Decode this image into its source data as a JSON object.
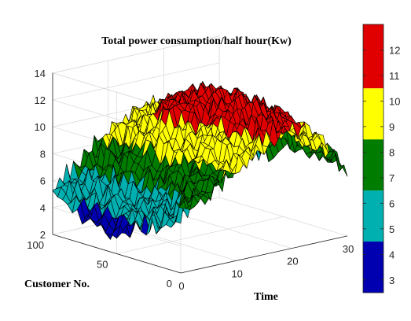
{
  "chart_data": {
    "type": "surface",
    "title": "Total power consumption/half hour(Kw)",
    "xlabel": "Time",
    "ylabel": "Customer No.",
    "zlabel": "",
    "xlim": [
      0,
      30
    ],
    "ylim": [
      0,
      100
    ],
    "zlim": [
      2,
      14
    ],
    "x_ticks": [
      "0",
      "10",
      "20",
      "30"
    ],
    "y_ticks": [
      "0",
      "50",
      "100"
    ],
    "z_ticks": [
      "2",
      "4",
      "6",
      "8",
      "10",
      "12",
      "14"
    ],
    "colorbar": {
      "ticks": [
        "3",
        "4",
        "5",
        "6",
        "7",
        "8",
        "9",
        "10",
        "11",
        "12"
      ],
      "range": [
        2.5,
        13
      ],
      "bands": [
        {
          "from": 2.5,
          "to": 4.5,
          "color": "#0000b0"
        },
        {
          "from": 4.5,
          "to": 6.5,
          "color": "#00b0b0"
        },
        {
          "from": 6.5,
          "to": 8.5,
          "color": "#007c00"
        },
        {
          "from": 8.5,
          "to": 10.5,
          "color": "#ffff00"
        },
        {
          "from": 10.5,
          "to": 13,
          "color": "#e00000"
        }
      ]
    },
    "x": [
      0,
      6,
      12,
      18,
      24,
      30
    ],
    "y": [
      0,
      20,
      40,
      60,
      80,
      100
    ],
    "z": [
      [
        6.5,
        7.5,
        9.0,
        11.0,
        10.0,
        7.0
      ],
      [
        5.0,
        7.0,
        9.5,
        12.0,
        10.5,
        7.5
      ],
      [
        4.0,
        6.5,
        10.0,
        12.5,
        11.0,
        7.5
      ],
      [
        3.0,
        6.0,
        11.5,
        12.5,
        10.0,
        6.5
      ],
      [
        4.0,
        7.0,
        10.0,
        11.0,
        9.5,
        6.0
      ],
      [
        5.5,
        7.5,
        9.0,
        10.0,
        9.0,
        6.5
      ]
    ],
    "grid": true
  }
}
